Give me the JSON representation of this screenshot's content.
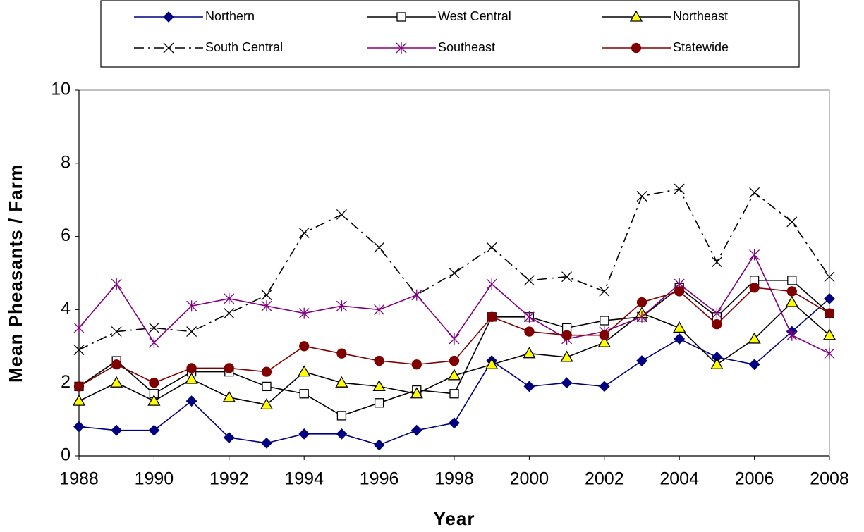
{
  "chart_data": {
    "type": "line",
    "x_label": "Year",
    "y_label": "Mean Pheasants / Farm",
    "x": [
      1988,
      1989,
      1990,
      1991,
      1992,
      1993,
      1994,
      1995,
      1996,
      1997,
      1998,
      1999,
      2000,
      2001,
      2002,
      2003,
      2004,
      2005,
      2006,
      2007,
      2008
    ],
    "xlim": [
      1988,
      2008
    ],
    "xticks": [
      1988,
      1990,
      1992,
      1994,
      1996,
      1998,
      2000,
      2002,
      2004,
      2006,
      2008
    ],
    "ylim": [
      0,
      10
    ],
    "yticks": [
      0,
      2,
      4,
      6,
      8,
      10
    ],
    "grid": false,
    "legend": "top",
    "series": [
      {
        "name": "Northern",
        "color": "#000080",
        "marker": "diamond",
        "marker_fill": "#000080",
        "dash": "solid",
        "values": [
          0.8,
          0.7,
          0.7,
          1.5,
          0.5,
          0.35,
          0.6,
          0.6,
          0.3,
          0.7,
          0.9,
          2.6,
          1.9,
          2.0,
          1.9,
          2.6,
          3.2,
          2.7,
          2.5,
          3.4,
          4.3
        ]
      },
      {
        "name": "West Central",
        "color": "#000000",
        "marker": "square",
        "marker_fill": "#ffffff",
        "dash": "solid",
        "values": [
          1.9,
          2.6,
          1.7,
          2.3,
          2.3,
          1.9,
          1.7,
          1.1,
          1.45,
          1.8,
          1.7,
          3.8,
          3.8,
          3.5,
          3.7,
          3.8,
          4.6,
          3.8,
          4.8,
          4.8,
          3.9
        ]
      },
      {
        "name": "Northeast",
        "color": "#000000",
        "marker": "triangle",
        "marker_fill": "#ffff00",
        "dash": "solid",
        "values": [
          1.5,
          2.0,
          1.5,
          2.1,
          1.6,
          1.4,
          2.3,
          2.0,
          1.9,
          1.7,
          2.2,
          2.5,
          2.8,
          2.7,
          3.1,
          3.9,
          3.5,
          2.5,
          3.2,
          4.2,
          3.3
        ]
      },
      {
        "name": "South Central",
        "color": "#000000",
        "marker": "x",
        "marker_fill": "none",
        "dash": "dashdot",
        "values": [
          2.9,
          3.4,
          3.5,
          3.4,
          3.9,
          4.4,
          6.1,
          6.6,
          5.7,
          4.4,
          5.0,
          5.7,
          4.8,
          4.9,
          4.5,
          7.1,
          7.3,
          5.3,
          7.2,
          6.4,
          4.9
        ]
      },
      {
        "name": "Southeast",
        "color": "#800080",
        "marker": "asterisk",
        "marker_fill": "none",
        "dash": "solid",
        "values": [
          3.5,
          4.7,
          3.1,
          4.1,
          4.3,
          4.1,
          3.9,
          4.1,
          4.0,
          4.4,
          3.2,
          4.7,
          3.8,
          3.2,
          3.4,
          3.8,
          4.7,
          3.9,
          5.5,
          3.3,
          2.8
        ]
      },
      {
        "name": "Statewide",
        "color": "#800000",
        "marker": "circle",
        "marker_fill": "#800000",
        "dash": "solid",
        "values": [
          1.9,
          2.5,
          2.0,
          2.4,
          2.4,
          2.3,
          3.0,
          2.8,
          2.6,
          2.5,
          2.6,
          3.8,
          3.4,
          3.3,
          3.3,
          4.2,
          4.5,
          3.6,
          4.6,
          4.5,
          3.9
        ]
      }
    ]
  }
}
